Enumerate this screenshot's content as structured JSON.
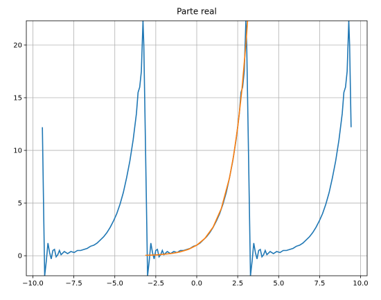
{
  "chart_data": {
    "type": "line",
    "title": "Parte real",
    "xlim": [
      -10.4,
      10.4
    ],
    "ylim": [
      -1.9,
      22.3
    ],
    "xticks": [
      {
        "value": -10,
        "label": "−10.0"
      },
      {
        "value": -7.5,
        "label": "−7.5"
      },
      {
        "value": -5,
        "label": "−5.0"
      },
      {
        "value": -2.5,
        "label": "−2.5"
      },
      {
        "value": 0,
        "label": "0.0"
      },
      {
        "value": 2.5,
        "label": "2.5"
      },
      {
        "value": 5,
        "label": "5.0"
      },
      {
        "value": 7.5,
        "label": "7.5"
      },
      {
        "value": 10,
        "label": "10.0"
      }
    ],
    "yticks": [
      0,
      5,
      10,
      15,
      20
    ],
    "grid": true,
    "series": [
      {
        "color": "#1f77b4",
        "x": [
          -9.42,
          -9.33,
          -9.28,
          -9.18,
          -9.08,
          -8.98,
          -8.88,
          -8.78,
          -8.68,
          -8.58,
          -8.48,
          -8.38,
          -8.28,
          -8.08,
          -7.88,
          -7.68,
          -7.48,
          -7.28,
          -7.08,
          -6.88,
          -6.68,
          -6.48,
          -6.28,
          -6.08,
          -5.88,
          -5.68,
          -5.48,
          -5.28,
          -5.08,
          -4.88,
          -4.68,
          -4.48,
          -4.28,
          -4.08,
          -3.88,
          -3.68,
          -3.58,
          -3.48,
          -3.38,
          -3.28,
          -3.23,
          -3.14,
          -3.05,
          -3.0,
          -2.9,
          -2.8,
          -2.7,
          -2.6,
          -2.5,
          -2.4,
          -2.3,
          -2.2,
          -2.1,
          -2.0,
          -1.8,
          -1.6,
          -1.4,
          -1.2,
          -1.0,
          -0.8,
          -0.6,
          -0.4,
          -0.2,
          0,
          0.2,
          0.4,
          0.6,
          0.8,
          1.0,
          1.2,
          1.4,
          1.6,
          1.8,
          2.0,
          2.2,
          2.4,
          2.6,
          2.7,
          2.8,
          2.9,
          3.0,
          3.05,
          3.14,
          3.23,
          3.28,
          3.38,
          3.48,
          3.58,
          3.68,
          3.78,
          3.88,
          3.98,
          4.08,
          4.18,
          4.28,
          4.48,
          4.68,
          4.88,
          5.08,
          5.28,
          5.48,
          5.68,
          5.88,
          6.08,
          6.28,
          6.48,
          6.68,
          6.88,
          7.08,
          7.28,
          7.48,
          7.68,
          7.88,
          8.08,
          8.28,
          8.48,
          8.68,
          8.88,
          8.98,
          9.08,
          9.18,
          9.28,
          9.33,
          9.42
        ],
        "values": [
          12.2,
          3,
          -1.9,
          -0.5,
          1.2,
          0.3,
          -0.3,
          0.5,
          0.6,
          -0.1,
          0.1,
          0.5,
          0.1,
          0.4,
          0.2,
          0.4,
          0.3,
          0.5,
          0.5,
          0.6,
          0.7,
          0.9,
          1.0,
          1.2,
          1.5,
          1.8,
          2.2,
          2.7,
          3.3,
          4.0,
          4.9,
          6.0,
          7.4,
          9.0,
          11.0,
          13.5,
          15.5,
          16.0,
          17.5,
          22.3,
          20,
          11.6,
          3,
          -1.9,
          -0.5,
          1.2,
          0.3,
          -0.3,
          0.5,
          0.6,
          -0.1,
          0.1,
          0.5,
          0.1,
          0.4,
          0.2,
          0.4,
          0.3,
          0.5,
          0.5,
          0.6,
          0.7,
          0.9,
          1.0,
          1.2,
          1.5,
          1.8,
          2.2,
          2.7,
          3.3,
          4.0,
          4.9,
          6.0,
          7.4,
          9.0,
          11.0,
          13.5,
          15.5,
          16.0,
          17.5,
          22.3,
          20,
          11.6,
          3,
          -1.9,
          -0.5,
          1.2,
          0.3,
          -0.3,
          0.5,
          0.6,
          -0.1,
          0.1,
          0.5,
          0.1,
          0.4,
          0.2,
          0.4,
          0.3,
          0.5,
          0.5,
          0.6,
          0.7,
          0.9,
          1.0,
          1.2,
          1.5,
          1.8,
          2.2,
          2.7,
          3.3,
          4.0,
          4.9,
          6.0,
          7.4,
          9.0,
          11.0,
          13.5,
          15.5,
          16.0,
          17.5,
          22.3,
          20,
          12.2
        ]
      },
      {
        "color": "#ff7f0e",
        "x": [
          -3.14,
          -2.5,
          -2,
          -1.5,
          -1,
          -0.5,
          0,
          0.5,
          1,
          1.5,
          2,
          2.25,
          2.5,
          2.75,
          3,
          3.14
        ],
        "values": [
          0.04,
          0.08,
          0.14,
          0.22,
          0.37,
          0.61,
          1,
          1.65,
          2.72,
          4.48,
          7.39,
          9.49,
          12.18,
          15.64,
          20.09,
          23.1
        ]
      }
    ]
  }
}
